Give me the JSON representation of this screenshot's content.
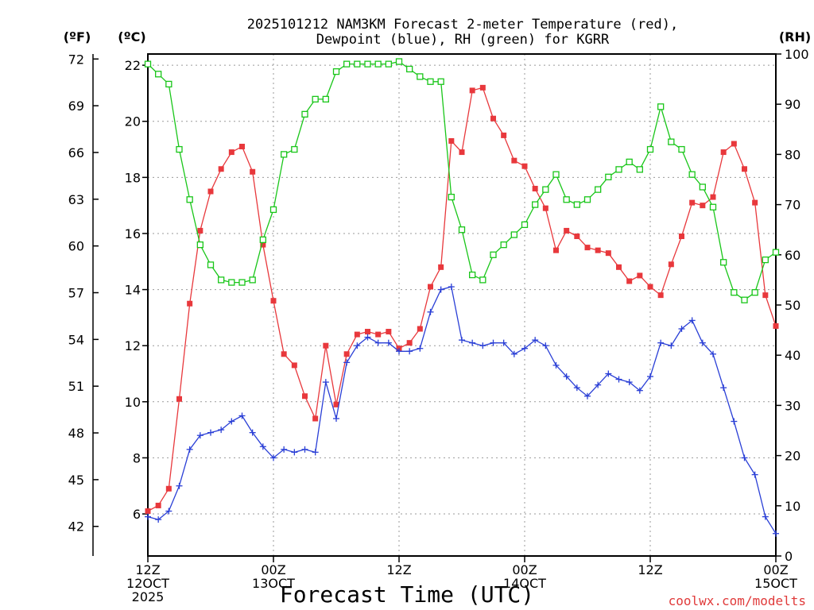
{
  "title_line1": "2025101212 NAM3KM Forecast 2-meter Temperature (red),",
  "title_line2": "Dewpoint (blue), RH (green) for KGRR",
  "xlabel": "Forecast Time (UTC)",
  "credit": "coolwx.com/modelts",
  "colors": {
    "temp": "#e8383c",
    "dew": "#2a3fd6",
    "rh": "#19c619",
    "grid": "#9a9a9a",
    "axis": "#000000"
  },
  "chart_data": {
    "type": "line",
    "axes": {
      "left_f": {
        "unit_label": "(ºF)",
        "ticks": [
          42,
          45,
          48,
          51,
          54,
          57,
          60,
          63,
          66,
          69,
          72
        ]
      },
      "left_c": {
        "unit_label": "(ºC)",
        "ticks": [
          6,
          8,
          10,
          12,
          14,
          16,
          18,
          20,
          22
        ],
        "ylim": [
          4.5,
          22.4
        ]
      },
      "right": {
        "unit_label": "(RH)",
        "ticks": [
          0,
          10,
          20,
          30,
          40,
          50,
          60,
          70,
          80,
          90,
          100
        ],
        "ylim": [
          0,
          100
        ]
      },
      "x": {
        "xlim": [
          0,
          60
        ],
        "ticks": [
          {
            "hour": 0,
            "line1": "12Z",
            "line2": "12OCT",
            "line3": "2025"
          },
          {
            "hour": 12,
            "line1": "00Z",
            "line2": "13OCT",
            "line3": ""
          },
          {
            "hour": 24,
            "line1": "12Z",
            "line2": "",
            "line3": ""
          },
          {
            "hour": 36,
            "line1": "00Z",
            "line2": "14OCT",
            "line3": ""
          },
          {
            "hour": 48,
            "line1": "12Z",
            "line2": "",
            "line3": ""
          },
          {
            "hour": 60,
            "line1": "00Z",
            "line2": "15OCT",
            "line3": ""
          }
        ]
      }
    },
    "grid": true,
    "hours": [
      0,
      1,
      2,
      3,
      4,
      5,
      6,
      7,
      8,
      9,
      10,
      11,
      12,
      13,
      14,
      15,
      16,
      17,
      18,
      19,
      20,
      21,
      22,
      23,
      24,
      25,
      26,
      27,
      28,
      29,
      30,
      31,
      32,
      33,
      34,
      35,
      36,
      37,
      38,
      39,
      40,
      41,
      42,
      43,
      44,
      45,
      46,
      47,
      48,
      49,
      50,
      51,
      52,
      53,
      54,
      55,
      56,
      57,
      58,
      59,
      60
    ],
    "series": [
      {
        "name": "Temperature",
        "unit": "°C",
        "values": [
          6.1,
          6.3,
          6.9,
          10.1,
          13.5,
          16.1,
          17.5,
          18.3,
          18.9,
          19.1,
          18.2,
          15.6,
          13.6,
          11.7,
          11.3,
          10.2,
          9.4,
          12.0,
          9.9,
          11.7,
          12.4,
          12.5,
          12.4,
          12.5,
          11.9,
          12.1,
          12.6,
          14.1,
          14.8,
          19.3,
          18.9,
          21.1,
          21.2,
          20.1,
          19.5,
          18.6,
          18.4,
          17.6,
          16.9,
          15.4,
          16.1,
          15.9,
          15.5,
          15.4,
          15.3,
          14.8,
          14.3,
          14.5,
          14.1,
          13.8,
          14.9,
          15.9,
          17.1,
          17.0,
          17.3,
          18.9,
          19.2,
          18.3,
          17.1,
          13.8,
          12.7
        ]
      },
      {
        "name": "Dewpoint",
        "unit": "°C",
        "values": [
          5.9,
          5.8,
          6.1,
          7.0,
          8.3,
          8.8,
          8.9,
          9.0,
          9.3,
          9.5,
          8.9,
          8.4,
          8.0,
          8.3,
          8.2,
          8.3,
          8.2,
          10.7,
          9.4,
          11.4,
          12.0,
          12.3,
          12.1,
          12.1,
          11.8,
          11.8,
          11.9,
          13.2,
          14.0,
          14.1,
          12.2,
          12.1,
          12.0,
          12.1,
          12.1,
          11.7,
          11.9,
          12.2,
          12.0,
          11.3,
          10.9,
          10.5,
          10.2,
          10.6,
          11.0,
          10.8,
          10.7,
          10.4,
          10.9,
          12.1,
          12.0,
          12.6,
          12.9,
          12.1,
          11.7,
          10.5,
          9.3,
          8.0,
          7.4,
          5.9,
          5.3
        ]
      },
      {
        "name": "RH",
        "unit": "%",
        "values": [
          98,
          96,
          94,
          81,
          71,
          62,
          58,
          55,
          54.5,
          54.5,
          55,
          63,
          69,
          80,
          81,
          88,
          91,
          91,
          96.5,
          98,
          98,
          98,
          98,
          98,
          98.5,
          97,
          95.5,
          94.5,
          94.5,
          71.5,
          65,
          56,
          55,
          60,
          62,
          64,
          66,
          70,
          73,
          76,
          71,
          70,
          71,
          73,
          75.5,
          77,
          78.5,
          77,
          81,
          89.5,
          82.5,
          81,
          76,
          73.5,
          69.5,
          58.5,
          52.5,
          51,
          52.5,
          59,
          60.5
        ]
      }
    ]
  }
}
